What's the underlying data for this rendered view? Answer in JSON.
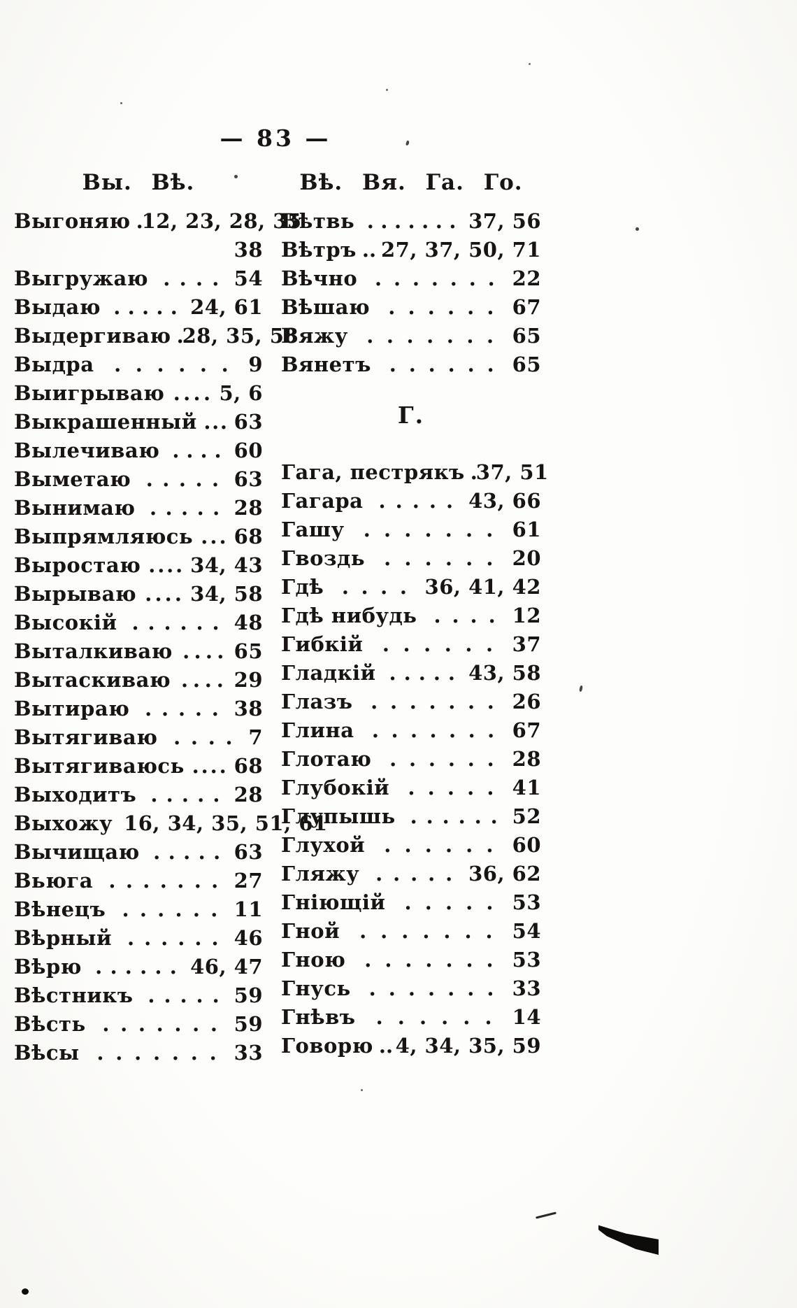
{
  "page": {
    "number": "83",
    "number_display": "— 83 —"
  },
  "columns": {
    "left": {
      "header": "Вы. Вѣ.",
      "entries": [
        {
          "term": "Выгоняю",
          "dots": 1,
          "pages": "12, 23, 28, 35"
        },
        {
          "term": "",
          "dots": 0,
          "pages": "38"
        },
        {
          "term": "Выгружаю",
          "dots": 4,
          "pages": "54"
        },
        {
          "term": "Выдаю",
          "dots": 5,
          "pages": "24, 61"
        },
        {
          "term": "Выдергиваю",
          "dots": 1,
          "pages": "28, 35, 58"
        },
        {
          "term": "Выдра",
          "dots": 6,
          "pages": "9"
        },
        {
          "term": "Выигрываю",
          "dots": 4,
          "pages": "5, 6"
        },
        {
          "term": "Выкрашенный",
          "dots": 3,
          "pages": "63"
        },
        {
          "term": "Вылечиваю",
          "dots": 4,
          "pages": "60"
        },
        {
          "term": "Выметаю",
          "dots": 5,
          "pages": "63"
        },
        {
          "term": "Вынимаю",
          "dots": 5,
          "pages": "28"
        },
        {
          "term": "Выпрямляюсь",
          "dots": 3,
          "pages": "68"
        },
        {
          "term": "Выростаю",
          "dots": 4,
          "pages": "34, 43"
        },
        {
          "term": "Вырываю",
          "dots": 4,
          "pages": "34, 58"
        },
        {
          "term": "Высокій",
          "dots": 6,
          "pages": "48"
        },
        {
          "term": "Выталкиваю",
          "dots": 4,
          "pages": "65"
        },
        {
          "term": "Вытаскиваю",
          "dots": 4,
          "pages": "29"
        },
        {
          "term": "Вытираю",
          "dots": 5,
          "pages": "38"
        },
        {
          "term": "Вытягиваю",
          "dots": 4,
          "pages": "7"
        },
        {
          "term": "Вытягиваюсь",
          "dots": 4,
          "pages": "68"
        },
        {
          "term": "Выходитъ",
          "dots": 5,
          "pages": "28"
        },
        {
          "term": "Выхожу",
          "dots": 0,
          "pages": "16, 34, 35, 51, 61"
        },
        {
          "term": "Вычищаю",
          "dots": 5,
          "pages": "63"
        },
        {
          "term": "Вьюга",
          "dots": 7,
          "pages": "27"
        },
        {
          "term": "Вѣнецъ",
          "dots": 6,
          "pages": "11"
        },
        {
          "term": "Вѣрный",
          "dots": 6,
          "pages": "46"
        },
        {
          "term": "Вѣрю",
          "dots": 6,
          "pages": "46, 47"
        },
        {
          "term": "Вѣстникъ",
          "dots": 5,
          "pages": "59"
        },
        {
          "term": "Вѣсть",
          "dots": 7,
          "pages": "59"
        },
        {
          "term": "Вѣсы",
          "dots": 7,
          "pages": "33"
        }
      ]
    },
    "right": {
      "header": "Вѣ. Вя. Га. Го.",
      "entries": [
        {
          "term": "Вѣтвь",
          "dots": 7,
          "pages": "37, 56"
        },
        {
          "term": "Вѣтръ",
          "dots": 2,
          "pages": "27, 37, 50, 71"
        },
        {
          "term": "Вѣчно",
          "dots": 7,
          "pages": "22"
        },
        {
          "term": "Вѣшаю",
          "dots": 6,
          "pages": "67"
        },
        {
          "term": "Вяжу",
          "dots": 7,
          "pages": "65"
        },
        {
          "term": "Вянетъ",
          "dots": 6,
          "pages": "65"
        },
        {
          "section": "Г."
        },
        {
          "term": "Гага, пестрякъ",
          "dots": 2,
          "pages": "37, 51"
        },
        {
          "term": "Гагара",
          "dots": 5,
          "pages": "43, 66"
        },
        {
          "term": "Гашу",
          "dots": 7,
          "pages": "61"
        },
        {
          "term": "Гвоздь",
          "dots": 6,
          "pages": "20"
        },
        {
          "term": "Гдѣ",
          "dots": 4,
          "pages": "36, 41, 42"
        },
        {
          "term": "Гдѣ нибудь",
          "dots": 4,
          "pages": "12"
        },
        {
          "term": "Гибкій",
          "dots": 6,
          "pages": "37"
        },
        {
          "term": "Гладкій",
          "dots": 5,
          "pages": "43, 58"
        },
        {
          "term": "Глазъ",
          "dots": 7,
          "pages": "26"
        },
        {
          "term": "Глина",
          "dots": 7,
          "pages": "67"
        },
        {
          "term": "Глотаю",
          "dots": 6,
          "pages": "28"
        },
        {
          "term": "Глубокій",
          "dots": 5,
          "pages": "41"
        },
        {
          "term": "Глупышь",
          "dots": 6,
          "pages": "52"
        },
        {
          "term": "Глухой",
          "dots": 6,
          "pages": "60"
        },
        {
          "term": "Гляжу",
          "dots": 5,
          "pages": "36, 62"
        },
        {
          "term": "Гніющій",
          "dots": 5,
          "pages": "53"
        },
        {
          "term": "Гной",
          "dots": 7,
          "pages": "54"
        },
        {
          "term": "Гною",
          "dots": 7,
          "pages": "53"
        },
        {
          "term": "Гнусь",
          "dots": 7,
          "pages": "33"
        },
        {
          "term": "Гнѣвъ",
          "dots": 6,
          "pages": "14"
        },
        {
          "term": "Говорю",
          "dots": 2,
          "pages": "4, 34, 35, 59"
        }
      ]
    }
  },
  "artifacts": {
    "ink_marks": [
      "bottom-right-ink-wedge",
      "bottom-right-ink-tick",
      "bottom-left-ink-dot"
    ],
    "ink_color": "#0d0c0a",
    "paper_color": "#fdfdfb",
    "text_color": "#171411"
  }
}
